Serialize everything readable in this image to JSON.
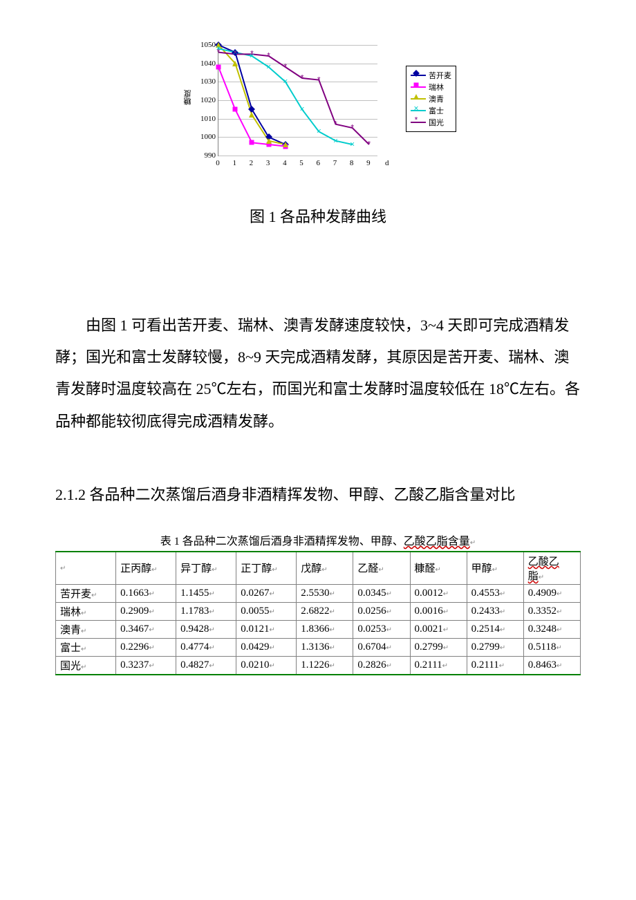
{
  "chart": {
    "type": "line",
    "y_axis_label_cn": "糖度",
    "x_axis_unit": "d",
    "x_domain": [
      0,
      9.5
    ],
    "y_domain": [
      990,
      1050
    ],
    "y_ticks": [
      990,
      1000,
      1010,
      1020,
      1030,
      1040,
      1050
    ],
    "x_ticks": [
      0,
      1,
      2,
      3,
      4,
      5,
      6,
      7,
      8,
      9
    ],
    "grid_color": "#c0c0c0",
    "axis_color": "#808080",
    "background_color": "#ffffff",
    "tick_fontsize": 11,
    "legend_fontsize": 11,
    "series": [
      {
        "name": "苦开麦",
        "color": "#0000a0",
        "marker": "diamond",
        "x": [
          0,
          1,
          2,
          3,
          4
        ],
        "y": [
          1050,
          1046,
          1015,
          1000,
          996
        ]
      },
      {
        "name": "瑞林",
        "color": "#ff00ff",
        "marker": "square",
        "x": [
          0,
          1,
          2,
          3,
          4
        ],
        "y": [
          1038,
          1015,
          997,
          996,
          995
        ]
      },
      {
        "name": "澳青",
        "color": "#c0c000",
        "marker": "triangle",
        "x": [
          0,
          1,
          2,
          3,
          4
        ],
        "y": [
          1050,
          1040,
          1012,
          998,
          996
        ]
      },
      {
        "name": "富士",
        "color": "#00cccc",
        "marker": "x",
        "x": [
          0,
          1,
          2,
          3,
          4,
          5,
          6,
          7,
          8
        ],
        "y": [
          1048,
          1046,
          1044,
          1038,
          1030,
          1015,
          1003,
          998,
          996
        ]
      },
      {
        "name": "国光",
        "color": "#800080",
        "marker": "star",
        "x": [
          0,
          1,
          2,
          3,
          4,
          5,
          6,
          7,
          8,
          9
        ],
        "y": [
          1046,
          1045,
          1045,
          1044,
          1038,
          1032,
          1031,
          1007,
          1005,
          996
        ]
      }
    ]
  },
  "caption": "图 1 各品种发酵曲线",
  "paragraph": "由图 1 可看出苦开麦、瑞林、澳青发酵速度较快，3~4 天即可完成酒精发酵；国光和富士发酵较慢，8~9 天完成酒精发酵，其原因是苦开麦、瑞林、澳青发酵时温度较高在 25℃左右，而国光和富士发酵时温度较低在 18℃左右。各品种都能较彻底得完成酒精发酵。",
  "section_heading": "2.1.2 各品种二次蒸馏后酒身非酒精挥发物、甲醇、乙酸乙脂含量对比",
  "table": {
    "title": "表 1 各品种二次蒸馏后酒身非酒精挥发物、甲醇、乙酸乙脂含量",
    "title_underline_span": "乙酸乙脂含量",
    "columns": [
      "",
      "正丙醇",
      "异丁醇",
      "正丁醇",
      "戊醇",
      "乙醛",
      "糠醛",
      "甲醇",
      "乙酸乙脂"
    ],
    "rows": [
      [
        "苦开麦",
        "0.1663",
        "1.1455",
        "0.0267",
        "2.5530",
        "0.0345",
        "0.0012",
        "0.4553",
        "0.4909"
      ],
      [
        "瑞林",
        "0.2909",
        "1.1783",
        "0.0055",
        "2.6822",
        "0.0256",
        "0.0016",
        "0.2433",
        "0.3352"
      ],
      [
        "澳青",
        "0.3467",
        "0.9428",
        "0.0121",
        "1.8366",
        "0.0253",
        "0.0021",
        "0.2514",
        "0.3248"
      ],
      [
        "富士",
        "0.2296",
        "0.4774",
        "0.0429",
        "1.3136",
        "0.6704",
        "0.2799",
        "0.2799",
        "0.5118"
      ],
      [
        "国光",
        "0.3237",
        "0.4827",
        "0.0210",
        "1.1226",
        "0.2826",
        "0.2111",
        "0.2111",
        "0.8463"
      ]
    ],
    "border_accent_color": "#008000",
    "cell_fontsize": 15
  }
}
